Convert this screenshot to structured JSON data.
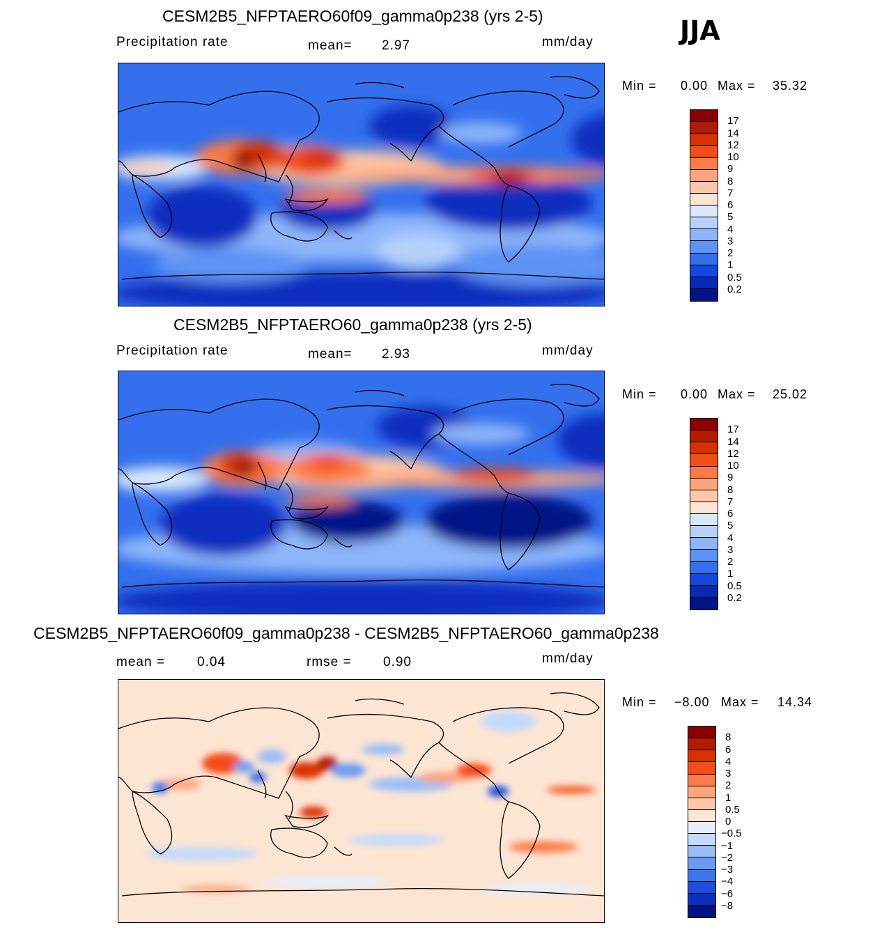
{
  "season": "JJA",
  "panels": [
    {
      "title": "CESM2B5_NFPTAERO60f09_gamma0p238 (yrs 2-5)",
      "left_label": "Precipitation  rate",
      "stat_label": "mean=",
      "stat_value": "2.97",
      "units": "mm/day",
      "min_text": "Min  =",
      "min_value": "0.00",
      "max_text": "Max  =",
      "max_value": "35.32",
      "colorbar_labels": [
        "17",
        "14",
        "12",
        "10",
        "9",
        "8",
        "7",
        "6",
        "5",
        "4",
        "3",
        "2",
        "1",
        "0.5",
        "0.2"
      ],
      "colorbar_colors": [
        "#8b0000",
        "#b31b00",
        "#d93000",
        "#f34c17",
        "#fb7a47",
        "#fca57d",
        "#fdc8a9",
        "#fde5d3",
        "#d8e9fb",
        "#b6d2fb",
        "#8db6fa",
        "#5e93f5",
        "#3470ee",
        "#1447de",
        "#072ab5",
        "#001388"
      ]
    },
    {
      "title": "CESM2B5_NFPTAERO60_gamma0p238 (yrs 2-5)",
      "left_label": "Precipitation  rate",
      "stat_label": "mean=",
      "stat_value": "2.93",
      "units": "mm/day",
      "min_text": "Min  =",
      "min_value": "0.00",
      "max_text": "Max  =",
      "max_value": "25.02",
      "colorbar_labels": [
        "17",
        "14",
        "12",
        "10",
        "9",
        "8",
        "7",
        "6",
        "5",
        "4",
        "3",
        "2",
        "1",
        "0.5",
        "0.2"
      ],
      "colorbar_colors": [
        "#8b0000",
        "#b31b00",
        "#d93000",
        "#f34c17",
        "#fb7a47",
        "#fca57d",
        "#fdc8a9",
        "#fde5d3",
        "#d8e9fb",
        "#b6d2fb",
        "#8db6fa",
        "#5e93f5",
        "#3470ee",
        "#1447de",
        "#072ab5",
        "#001388"
      ]
    },
    {
      "title": "CESM2B5_NFPTAERO60f09_gamma0p238 - CESM2B5_NFPTAERO60_gamma0p238",
      "left_label": "mean  =",
      "left_value": "0.04",
      "stat_label": "rmse  =",
      "stat_value": "0.90",
      "units": "mm/day",
      "min_text": "Min  =",
      "min_value": "−8.00",
      "max_text": "Max  =",
      "max_value": "14.34",
      "colorbar_labels": [
        "8",
        "6",
        "4",
        "3",
        "2",
        "1",
        "0.5",
        "0",
        "−0.5",
        "−1",
        "−2",
        "−3",
        "−4",
        "−6",
        "−8"
      ],
      "colorbar_colors": [
        "#8b0000",
        "#b31b00",
        "#d93000",
        "#f34c17",
        "#fb7a47",
        "#fca57d",
        "#fdc8a9",
        "#fde5d3",
        "#e6effb",
        "#c4dafb",
        "#99bdf9",
        "#6b9cf5",
        "#3d75ef",
        "#1c4fe0",
        "#0a2fbf",
        "#001388"
      ],
      "ocean_color": "#fde5d3"
    }
  ],
  "map_colors": {
    "deep_blue": "#0a2fbf",
    "mid_blue": "#3470ee",
    "light_blue": "#8db6fa",
    "pale": "#d8e9fb",
    "orange": "#fb7a47",
    "red": "#d93000",
    "dark_red": "#8b0000"
  }
}
